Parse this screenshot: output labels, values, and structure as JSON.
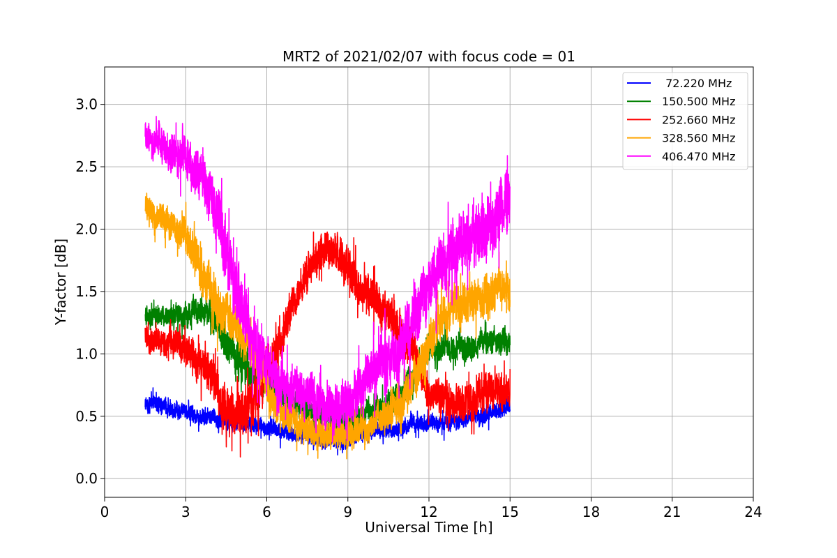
{
  "chart_data": {
    "type": "line",
    "title": "MRT2 of 2021/02/07 with focus code = 01",
    "xlabel": "Universal Time [h]",
    "ylabel": "Y-factor [dB]",
    "xlim": [
      0,
      24
    ],
    "ylim": [
      -0.15,
      3.3
    ],
    "xticks": [
      0,
      3,
      6,
      9,
      12,
      15,
      18,
      21,
      24
    ],
    "yticks": [
      0.0,
      0.5,
      1.0,
      1.5,
      2.0,
      2.5,
      3.0
    ],
    "ytick_format": "one-decimal",
    "grid": true,
    "legend_position": "top-right",
    "x": [
      1.5,
      2.0,
      2.5,
      3.0,
      3.5,
      4.0,
      4.5,
      5.0,
      5.5,
      6.0,
      6.5,
      7.0,
      7.5,
      8.0,
      8.5,
      9.0,
      9.5,
      10.0,
      10.5,
      11.0,
      11.5,
      12.0,
      12.5,
      13.0,
      13.5,
      14.0,
      14.5,
      15.0
    ],
    "series": [
      {
        "name": " 72.220 MHz",
        "color": "#0000ff",
        "values": [
          0.6,
          0.6,
          0.55,
          0.55,
          0.5,
          0.5,
          0.45,
          0.45,
          0.45,
          0.4,
          0.4,
          0.35,
          0.35,
          0.3,
          0.3,
          0.3,
          0.35,
          0.4,
          0.4,
          0.4,
          0.45,
          0.45,
          0.45,
          0.45,
          0.5,
          0.5,
          0.55,
          0.6
        ],
        "spread": [
          0.2,
          0.2,
          0.2,
          0.2,
          0.2,
          0.2,
          0.2,
          0.2,
          0.2,
          0.2,
          0.2,
          0.2,
          0.2,
          0.2,
          0.2,
          0.2,
          0.2,
          0.2,
          0.2,
          0.2,
          0.2,
          0.2,
          0.2,
          0.2,
          0.2,
          0.2,
          0.2,
          0.2
        ]
      },
      {
        "name": "150.500 MHz",
        "color": "#008000",
        "values": [
          1.3,
          1.3,
          1.3,
          1.3,
          1.35,
          1.3,
          1.1,
          0.95,
          0.85,
          0.75,
          0.7,
          0.6,
          0.55,
          0.5,
          0.45,
          0.45,
          0.5,
          0.55,
          0.6,
          0.7,
          0.85,
          1.0,
          1.05,
          1.05,
          1.05,
          1.1,
          1.1,
          1.1
        ],
        "spread": [
          0.25,
          0.25,
          0.25,
          0.3,
          0.35,
          0.35,
          0.4,
          0.45,
          0.45,
          0.4,
          0.35,
          0.35,
          0.3,
          0.3,
          0.3,
          0.3,
          0.3,
          0.3,
          0.3,
          0.35,
          0.35,
          0.3,
          0.3,
          0.3,
          0.3,
          0.3,
          0.3,
          0.3
        ]
      },
      {
        "name": "252.660 MHz",
        "color": "#ff0000",
        "values": [
          1.15,
          1.1,
          1.1,
          1.05,
          0.95,
          0.85,
          0.55,
          0.5,
          0.6,
          0.9,
          1.1,
          1.4,
          1.65,
          1.8,
          1.85,
          1.65,
          1.5,
          1.45,
          1.3,
          1.15,
          1.0,
          0.7,
          0.65,
          0.6,
          0.6,
          0.65,
          0.7,
          0.7
        ],
        "spread": [
          0.3,
          0.3,
          0.35,
          0.4,
          0.45,
          0.55,
          0.6,
          0.6,
          0.55,
          0.5,
          0.45,
          0.45,
          0.4,
          0.45,
          0.45,
          0.5,
          0.5,
          0.5,
          0.5,
          0.5,
          0.45,
          0.4,
          0.4,
          0.45,
          0.45,
          0.45,
          0.45,
          0.4
        ]
      },
      {
        "name": "328.560 MHz",
        "color": "#ffa500",
        "values": [
          2.2,
          2.1,
          2.05,
          1.95,
          1.7,
          1.45,
          1.3,
          1.15,
          1.0,
          0.7,
          0.55,
          0.45,
          0.4,
          0.35,
          0.35,
          0.35,
          0.4,
          0.45,
          0.5,
          0.6,
          0.8,
          1.1,
          1.3,
          1.4,
          1.4,
          1.45,
          1.5,
          1.5
        ],
        "spread": [
          0.3,
          0.35,
          0.4,
          0.45,
          0.5,
          0.55,
          0.55,
          0.55,
          0.5,
          0.45,
          0.4,
          0.35,
          0.35,
          0.35,
          0.35,
          0.35,
          0.35,
          0.35,
          0.35,
          0.45,
          0.5,
          0.5,
          0.5,
          0.5,
          0.5,
          0.55,
          0.55,
          0.55
        ]
      },
      {
        "name": "406.470 MHz",
        "color": "#ff00ff",
        "values": [
          2.75,
          2.7,
          2.6,
          2.55,
          2.45,
          2.2,
          1.75,
          1.4,
          1.1,
          0.9,
          0.75,
          0.7,
          0.7,
          0.6,
          0.55,
          0.6,
          0.75,
          0.9,
          1.0,
          1.05,
          1.3,
          1.6,
          1.75,
          1.85,
          1.9,
          2.0,
          2.1,
          2.25
        ],
        "spread": [
          0.35,
          0.45,
          0.5,
          0.55,
          0.6,
          0.7,
          0.8,
          0.8,
          0.7,
          0.6,
          0.55,
          0.55,
          0.55,
          0.55,
          0.55,
          0.55,
          0.6,
          0.6,
          0.6,
          0.7,
          0.75,
          0.75,
          0.75,
          0.75,
          0.75,
          0.75,
          0.75,
          0.7
        ]
      }
    ]
  }
}
